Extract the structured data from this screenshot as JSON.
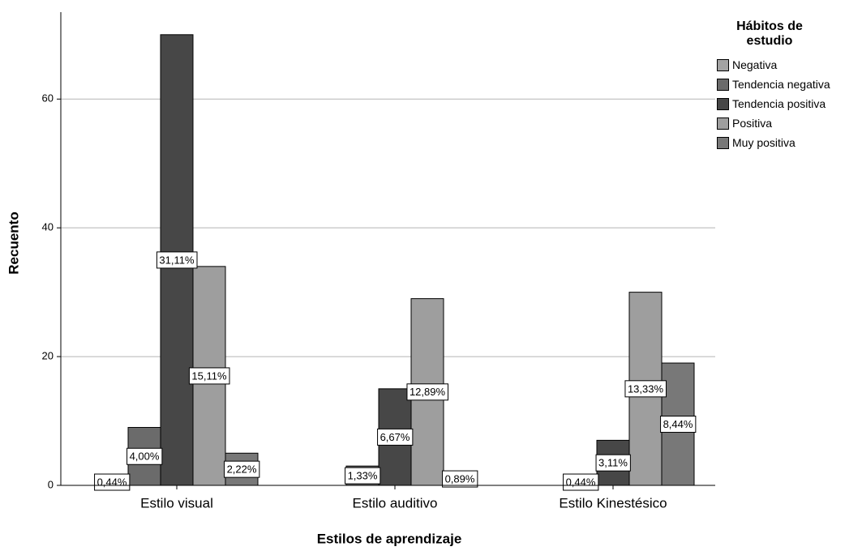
{
  "chart_data": {
    "type": "bar",
    "x_label": "Estilos de aprendizaje",
    "y_label": "Recuento",
    "legend_title": "Hábitos de estudio",
    "legend_position": "right",
    "grid": true,
    "categories": [
      "Estilo visual",
      "Estilo auditivo",
      "Estilo Kinestésico"
    ],
    "ylim": [
      0,
      73.5
    ],
    "yticks": [
      0,
      20,
      40,
      60
    ],
    "series": [
      {
        "name": "Negativa",
        "color": "#a3a3a3",
        "values": [
          1,
          null,
          null
        ],
        "value_labels": [
          "0,44%",
          null,
          null
        ]
      },
      {
        "name": "Tendencia negativa",
        "color": "#6b6b6b",
        "values": [
          9,
          3,
          1
        ],
        "value_labels": [
          "4,00%",
          "1,33%",
          "0,44%"
        ]
      },
      {
        "name": "Tendencia positiva",
        "color": "#474747",
        "values": [
          70,
          15,
          7
        ],
        "value_labels": [
          "31,11%",
          "6,67%",
          "3,11%"
        ]
      },
      {
        "name": "Positiva",
        "color": "#9e9e9e",
        "values": [
          34,
          29,
          30
        ],
        "value_labels": [
          "15,11%",
          "12,89%",
          "13,33%"
        ]
      },
      {
        "name": "Muy positiva",
        "color": "#787878",
        "values": [
          5,
          2,
          19
        ],
        "value_labels": [
          "2,22%",
          "0,89%",
          "8,44%"
        ]
      }
    ]
  }
}
